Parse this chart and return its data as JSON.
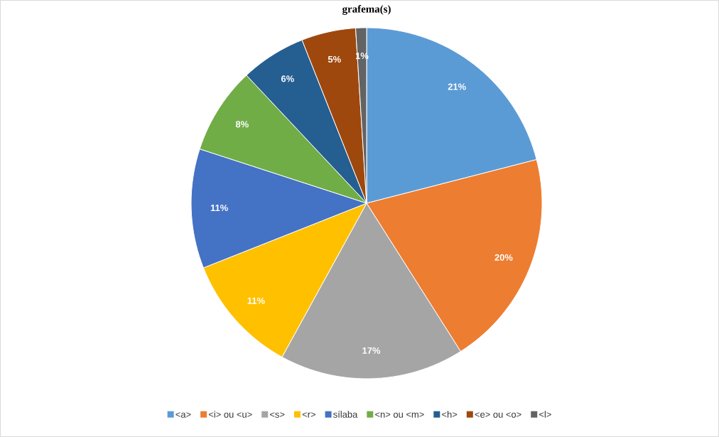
{
  "chart_data": {
    "type": "pie",
    "title": "grafema(s)",
    "categories": [
      "<a>",
      "<i> ou <u>",
      "<s>",
      "<r>",
      "sílaba",
      "<n> ou <m>",
      "<h>",
      "<e> ou <o>",
      "<l>"
    ],
    "values": [
      21,
      20,
      17,
      11,
      11,
      8,
      6,
      5,
      1
    ],
    "value_labels": [
      "21%",
      "20%",
      "17%",
      "11%",
      "11%",
      "8%",
      "6%",
      "5%",
      "1%"
    ],
    "colors": [
      "#5b9bd5",
      "#ed7d31",
      "#a5a5a5",
      "#ffc000",
      "#4472c4",
      "#70ad47",
      "#255e91",
      "#9e480e",
      "#636363"
    ],
    "legend": "bottom"
  }
}
